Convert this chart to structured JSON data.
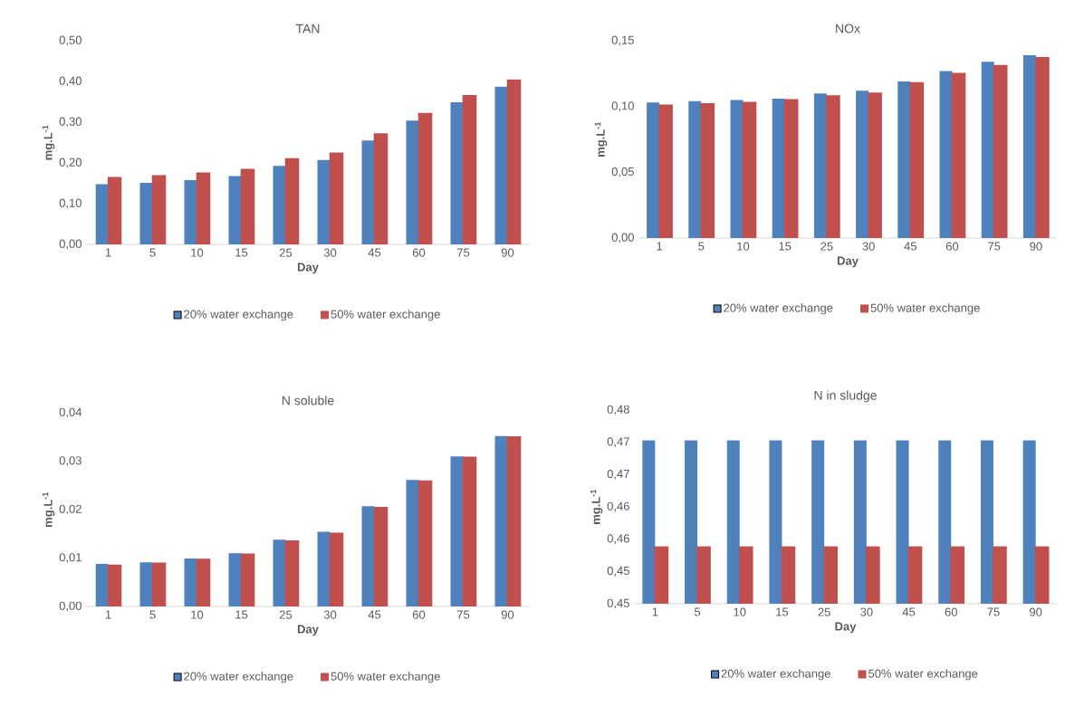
{
  "chart_data": [
    {
      "type": "bar",
      "title": "TAN",
      "xlabel": "Day",
      "ylabel": "mg.L$^{-1}$",
      "legend": "bottom",
      "categories": [
        "1",
        "5",
        "10",
        "15",
        "25",
        "30",
        "45",
        "60",
        "75",
        "90"
      ],
      "ylim": [
        0,
        0.5
      ],
      "yticks": [
        {
          "value": 0,
          "label": "0,00"
        },
        {
          "value": 0.1,
          "label": "0,10"
        },
        {
          "value": 0.2,
          "label": "0,20"
        },
        {
          "value": 0.3,
          "label": "0,30"
        },
        {
          "value": 0.4,
          "label": "0,40"
        },
        {
          "value": 0.5,
          "label": "0,50"
        }
      ],
      "series": [
        {
          "name": "20% water exchange",
          "color": "#4f81bd",
          "values": [
            0.148,
            0.151,
            0.158,
            0.168,
            0.193,
            0.207,
            0.255,
            0.304,
            0.349,
            0.387
          ]
        },
        {
          "name": "50% water exchange",
          "color": "#c0504d",
          "values": [
            0.164,
            0.168,
            0.175,
            0.184,
            0.21,
            0.224,
            0.271,
            0.321,
            0.365,
            0.403
          ]
        }
      ]
    },
    {
      "type": "bar",
      "title": "NOx",
      "xlabel": "Day",
      "ylabel": "mg.L$^{-1}$",
      "legend": "bottom",
      "categories": [
        "1",
        "5",
        "10",
        "15",
        "25",
        "30",
        "45",
        "60",
        "75",
        "90"
      ],
      "ylim": [
        0,
        0.15
      ],
      "yticks": [
        {
          "value": 0,
          "label": "0,00"
        },
        {
          "value": 0.05,
          "label": "0,05"
        },
        {
          "value": 0.1,
          "label": "0,10"
        },
        {
          "value": 0.15,
          "label": "0,15"
        }
      ],
      "series": [
        {
          "name": "20% water exchange",
          "color": "#4f81bd",
          "values": [
            0.103,
            0.104,
            0.105,
            0.106,
            0.11,
            0.112,
            0.119,
            0.127,
            0.134,
            0.139
          ]
        },
        {
          "name": "50% water exchange",
          "color": "#c0504d",
          "values": [
            0.101,
            0.102,
            0.103,
            0.105,
            0.108,
            0.11,
            0.118,
            0.125,
            0.131,
            0.137
          ]
        }
      ]
    },
    {
      "type": "bar",
      "title": "N soluble",
      "xlabel": "Day",
      "ylabel": "mg.L$^{-1}$",
      "legend": "bottom",
      "categories": [
        "1",
        "5",
        "10",
        "15",
        "25",
        "30",
        "45",
        "60",
        "75",
        "90"
      ],
      "ylim": [
        0,
        0.04
      ],
      "yticks": [
        {
          "value": 0,
          "label": "0,00"
        },
        {
          "value": 0.01,
          "label": "0,01"
        },
        {
          "value": 0.02,
          "label": "0,02"
        },
        {
          "value": 0.03,
          "label": "0,03"
        },
        {
          "value": 0.04,
          "label": "0,04"
        }
      ],
      "series": [
        {
          "name": "20% water exchange",
          "color": "#4f81bd",
          "values": [
            0.0088,
            0.0091,
            0.0099,
            0.011,
            0.0138,
            0.0154,
            0.0207,
            0.0261,
            0.031,
            0.0352
          ]
        },
        {
          "name": "50% water exchange",
          "color": "#c0504d",
          "values": [
            0.0085,
            0.0089,
            0.0097,
            0.0108,
            0.0135,
            0.0151,
            0.0204,
            0.0259,
            0.0308,
            0.035
          ]
        }
      ]
    },
    {
      "type": "bar",
      "title": "N in sludge",
      "xlabel": "Day",
      "ylabel": "mg.L$^{-1}$",
      "legend": "bottom",
      "categories": [
        "1",
        "5",
        "10",
        "15",
        "25",
        "30",
        "45",
        "60",
        "75",
        "90"
      ],
      "ylim": [
        0.445,
        0.475
      ],
      "yticks": [
        {
          "value": 0.445,
          "label": "0,45"
        },
        {
          "value": 0.45,
          "label": "0,45"
        },
        {
          "value": 0.455,
          "label": "0,46"
        },
        {
          "value": 0.46,
          "label": "0,46"
        },
        {
          "value": 0.465,
          "label": "0,47"
        },
        {
          "value": 0.47,
          "label": "0,47"
        },
        {
          "value": 0.475,
          "label": "0,48"
        }
      ],
      "series": [
        {
          "name": "20% water exchange",
          "color": "#4f81bd",
          "values": [
            0.4703,
            0.4703,
            0.4703,
            0.4703,
            0.4703,
            0.4703,
            0.4703,
            0.4703,
            0.4703,
            0.4703
          ]
        },
        {
          "name": "50% water exchange",
          "color": "#c0504d",
          "values": [
            0.4538,
            0.4538,
            0.4538,
            0.4538,
            0.4538,
            0.4538,
            0.4538,
            0.4538,
            0.4538,
            0.4538
          ]
        }
      ]
    }
  ]
}
